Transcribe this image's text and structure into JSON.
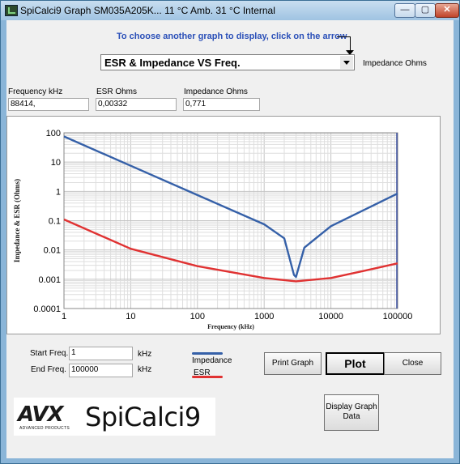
{
  "window": {
    "title": "SpiCalci9 Graph SM035A205K...   11 °C Amb.   31 °C Internal",
    "min_glyph": "—",
    "max_glyph": "▢",
    "close_glyph": "✕"
  },
  "instruction": "To choose another graph to display, click on the arrow",
  "graph_selector": {
    "value": "ESR & Impedance VS Freq."
  },
  "unit_label": "Impedance Ohms",
  "readouts": {
    "frequency_label": "Frequency kHz",
    "frequency_value": "88414,",
    "esr_label": "ESR Ohms",
    "esr_value": "0,00332",
    "impedance_label": "Impedance Ohms",
    "impedance_value": "0,771"
  },
  "chart_data": {
    "type": "line",
    "x_scale": "log",
    "y_scale": "log",
    "xlabel": "Frequency (kHz)",
    "ylabel": "Impedance & ESR (Ohms)",
    "xlim": [
      1,
      100000
    ],
    "ylim": [
      0.0001,
      100
    ],
    "x_ticks": [
      "1",
      "10",
      "100",
      "1000",
      "10000",
      "100000"
    ],
    "y_ticks": [
      "100",
      "10",
      "1",
      "0.1",
      "0.01",
      "0.001",
      "0.0001"
    ],
    "grid": true,
    "series": [
      {
        "name": "Impedance",
        "color": "#3560a8",
        "x": [
          1,
          10,
          100,
          1000,
          2000,
          2800,
          3000,
          4000,
          10000,
          30000,
          100000
        ],
        "y": [
          75,
          7.5,
          0.75,
          0.075,
          0.025,
          0.0014,
          0.0012,
          0.012,
          0.065,
          0.22,
          0.85
        ]
      },
      {
        "name": "ESR",
        "color": "#e03232",
        "x": [
          1,
          10,
          100,
          1000,
          3000,
          10000,
          30000,
          100000
        ],
        "y": [
          0.11,
          0.011,
          0.0028,
          0.0011,
          0.00085,
          0.0011,
          0.0019,
          0.0035
        ]
      }
    ]
  },
  "controls": {
    "start_label": "Start Freq.",
    "start_value": "1",
    "start_unit": "kHz",
    "end_label": "End Freq.",
    "end_value": "100000",
    "end_unit": "kHz",
    "legend_impedance": "Impedance",
    "legend_esr": "ESR"
  },
  "buttons": {
    "print": "Print Graph",
    "plot": "Plot",
    "close": "Close",
    "display_data": "Display Graph Data"
  },
  "logo": {
    "avx": "AVX",
    "avx_sub": "ADVANCED PRODUCTS",
    "brand": "SpiCalci9"
  }
}
